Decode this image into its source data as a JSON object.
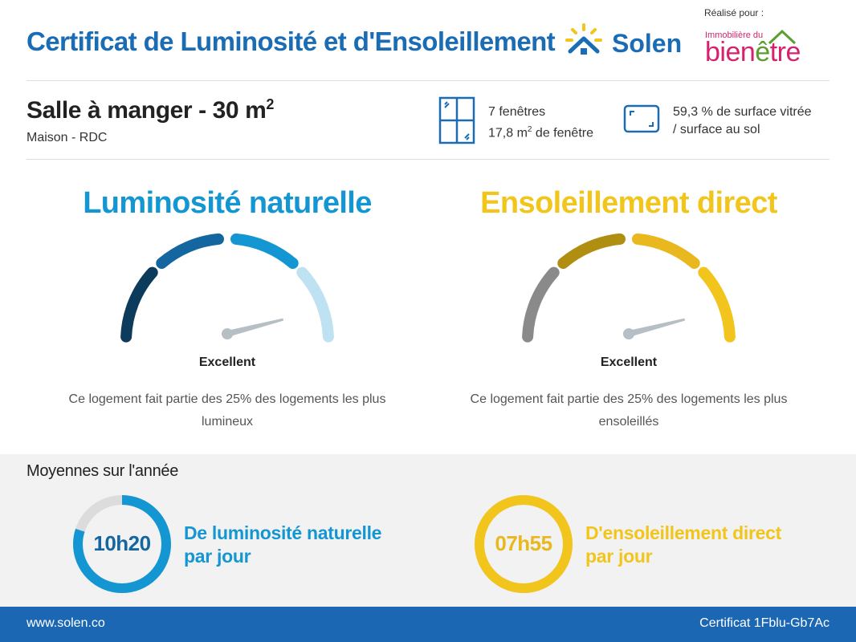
{
  "header": {
    "title": "Certificat de Luminosité et d'Ensoleillement",
    "brand": "Solen",
    "realise_pour": "Réalisé pour :",
    "client_logo_top": "Immobilière du",
    "client_logo_word_1": "bien",
    "client_logo_word_2": "tre"
  },
  "room": {
    "title": "Salle à manger - 30 m",
    "title_sup": "2",
    "subtitle": "Maison - RDC"
  },
  "windows": {
    "count_text": "7 fenêtres",
    "area_text": "17,8 m",
    "area_sup": "2",
    "area_suffix": " de fenêtre"
  },
  "surface": {
    "line1": "59,3 % de surface vitrée",
    "line2": "/ surface au sol"
  },
  "luminosite": {
    "title": "Luminosité naturelle",
    "rating": "Excellent",
    "description": "Ce logement fait partie des 25% des logements les plus lumineux",
    "level": 0.92
  },
  "ensoleillement": {
    "title": "Ensoleillement direct",
    "rating": "Excellent",
    "description": "Ce logement fait partie des 25% des logements les plus ensoleillés",
    "level": 0.92
  },
  "averages": {
    "title": "Moyennes sur l'année",
    "luminosite": {
      "value": "10h20",
      "label_1": "De luminosité naturelle",
      "label_2": "par jour",
      "fraction": 0.8
    },
    "ensoleillement": {
      "value": "07h55",
      "label_1": "D'ensoleillement direct",
      "label_2": "par jour",
      "fraction": 1.0
    }
  },
  "footer": {
    "website": "www.solen.co",
    "certificate": "Certificat 1Fblu-Gb7Ac"
  },
  "colors": {
    "brand_blue": "#1a6cb5",
    "lum_blue": "#1496d2",
    "sun_yellow": "#f2c51c",
    "client_pink": "#d6226e",
    "client_green": "#5a9e2f"
  }
}
